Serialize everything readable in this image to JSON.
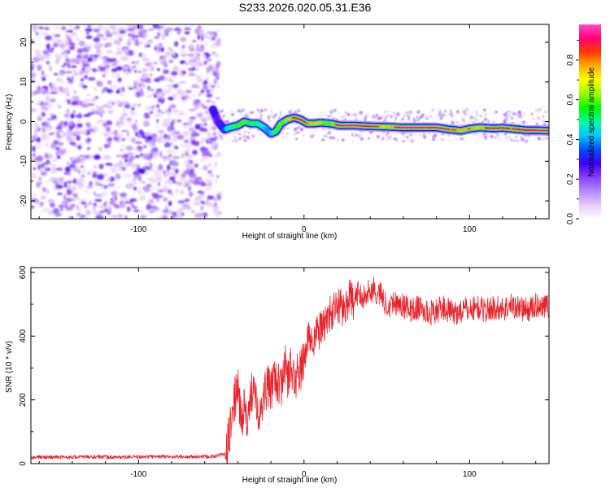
{
  "title": "S233.2026.020.05.31.E36",
  "chart_data": [
    {
      "type": "heatmap",
      "name": "spectrogram",
      "xlabel": "Height of straight line (km)",
      "ylabel": "Frequency (Hz)",
      "xlim": [
        -165,
        148
      ],
      "ylim": [
        -24.5,
        24.5
      ],
      "x_ticks": [
        -100,
        0,
        100
      ],
      "x_tick_labels": [
        "-100",
        "0",
        "100"
      ],
      "y_ticks": [
        -20,
        -10,
        0,
        10,
        20
      ],
      "y_tick_labels": [
        "-20",
        "-10",
        "0",
        "10",
        "20"
      ],
      "noise_region_x": [
        -165,
        -55
      ],
      "ridge": {
        "x": [
          -55,
          -52,
          -48,
          -45,
          -40,
          -36,
          -32,
          -28,
          -24,
          -20,
          -17,
          -14,
          -10,
          -6,
          -2,
          2,
          6,
          10,
          16,
          22,
          30,
          40,
          50,
          60,
          70,
          80,
          88,
          95,
          100,
          106,
          110,
          115,
          120,
          125,
          130,
          135,
          140,
          148
        ],
        "y": [
          3,
          0,
          -2,
          -1.5,
          -1,
          0,
          -0.5,
          -0.5,
          -1.5,
          -3,
          -2.5,
          -0.5,
          0.5,
          1,
          0.5,
          -0.5,
          -0.5,
          -0.3,
          -0.5,
          -1,
          -1,
          -1.2,
          -1.3,
          -1.5,
          -1.5,
          -1.5,
          -2,
          -2.3,
          -1.8,
          -1.5,
          -1.6,
          -1.7,
          -1.6,
          -1.8,
          -2,
          -2.2,
          -2.2,
          -2.3
        ],
        "amplitude": [
          0.25,
          0.15,
          0.3,
          0.45,
          0.5,
          0.6,
          0.5,
          0.45,
          0.4,
          0.35,
          0.5,
          0.65,
          0.7,
          0.85,
          0.9,
          0.8,
          0.75,
          0.7,
          0.65,
          0.95,
          0.95,
          0.9,
          0.7,
          0.95,
          1.0,
          1.0,
          0.85,
          0.75,
          0.8,
          0.7,
          0.85,
          0.9,
          0.9,
          0.8,
          0.85,
          0.9,
          0.95,
          0.95
        ]
      }
    },
    {
      "type": "colorbar",
      "name": "amplitude-colorbar",
      "label": "Normalized spectral amplitude",
      "range": [
        0,
        0.98
      ],
      "ticks": [
        0.0,
        0.2,
        0.4,
        0.6,
        0.8
      ],
      "tick_labels": [
        "0.0",
        "0.2",
        "0.4",
        "0.6",
        "0.8"
      ],
      "colors": [
        "#ffffff",
        "#e7c9ff",
        "#b488ff",
        "#8a3dff",
        "#3b00ff",
        "#0050ff",
        "#00c8ff",
        "#00ffa0",
        "#00ff00",
        "#9cff00",
        "#ffff00",
        "#ffae00",
        "#ff3a00",
        "#ff0078",
        "#ff4fc6"
      ]
    },
    {
      "type": "line",
      "name": "snr",
      "xlabel": "Height of straight line (km)",
      "ylabel": "SNR (10 * v/v)",
      "xlim": [
        -165,
        148
      ],
      "ylim": [
        0,
        615
      ],
      "x_ticks": [
        -100,
        0,
        100
      ],
      "x_tick_labels": [
        "-100",
        "0",
        "100"
      ],
      "y_ticks": [
        0,
        200,
        400,
        600
      ],
      "y_tick_labels": [
        "0",
        "200",
        "400",
        "600"
      ],
      "color": "#e8232a",
      "series": [
        {
          "name": "SNR",
          "x": [
            -165,
            -150,
            -130,
            -110,
            -90,
            -70,
            -55,
            -48,
            -46,
            -44,
            -42,
            -40,
            -38,
            -36,
            -34,
            -32,
            -30,
            -28,
            -26,
            -24,
            -22,
            -20,
            -18,
            -16,
            -14,
            -12,
            -10,
            -8,
            -6,
            -4,
            -2,
            0,
            2,
            4,
            6,
            8,
            10,
            12,
            14,
            16,
            18,
            20,
            22,
            24,
            26,
            28,
            30,
            32,
            34,
            36,
            38,
            40,
            42,
            44,
            46,
            48,
            50,
            55,
            60,
            65,
            70,
            75,
            80,
            85,
            90,
            95,
            100,
            105,
            110,
            115,
            120,
            125,
            130,
            135,
            140,
            145,
            148
          ],
          "y": [
            20,
            20,
            21,
            20,
            22,
            21,
            22,
            30,
            60,
            130,
            200,
            240,
            130,
            190,
            100,
            220,
            260,
            180,
            140,
            230,
            240,
            220,
            300,
            250,
            230,
            320,
            270,
            300,
            260,
            280,
            290,
            330,
            380,
            400,
            390,
            410,
            420,
            440,
            450,
            470,
            480,
            490,
            500,
            480,
            510,
            520,
            505,
            530,
            540,
            520,
            545,
            530,
            560,
            520,
            540,
            510,
            500,
            505,
            495,
            480,
            490,
            470,
            480,
            490,
            470,
            480,
            485,
            490,
            480,
            490,
            485,
            495,
            490,
            480,
            495,
            500,
            490
          ]
        }
      ]
    }
  ]
}
